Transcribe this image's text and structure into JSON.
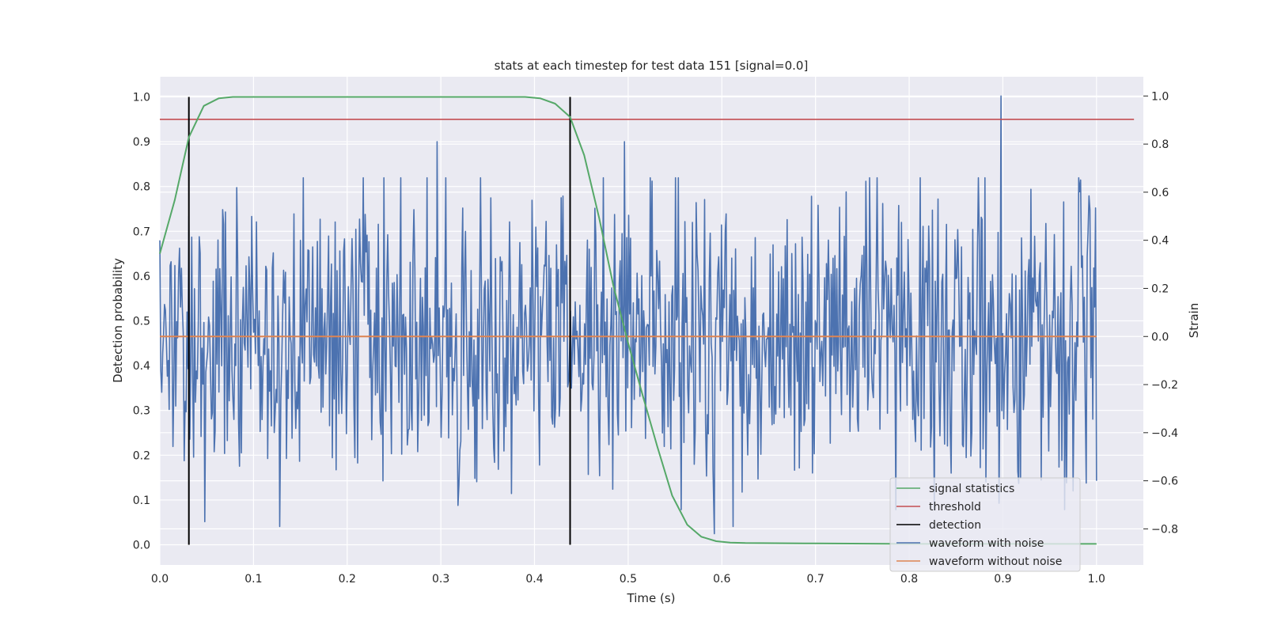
{
  "chart_data": {
    "type": "line",
    "title": "stats at each timestep for test data 151 [signal=0.0]",
    "xlabel": "Time (s)",
    "ylabel_left": "Detection probability",
    "ylabel_right": "Strain",
    "xlim": [
      0.0,
      1.05
    ],
    "ylim_left": [
      -0.045,
      1.045
    ],
    "ylim_right": [
      -0.95,
      1.08
    ],
    "x_ticks": [
      "0.0",
      "0.1",
      "0.2",
      "0.3",
      "0.4",
      "0.5",
      "0.6",
      "0.7",
      "0.8",
      "0.9",
      "1.0"
    ],
    "y_ticks_left": [
      "0.0",
      "0.1",
      "0.2",
      "0.3",
      "0.4",
      "0.5",
      "0.6",
      "0.7",
      "0.8",
      "0.9",
      "1.0"
    ],
    "y_ticks_right": [
      "−0.8",
      "−0.6",
      "−0.4",
      "−0.2",
      "0.0",
      "0.2",
      "0.4",
      "0.6",
      "0.8",
      "1.0"
    ],
    "grid": true,
    "legend_position": "bottom-right",
    "colors": {
      "background": "#eaeaf2",
      "grid": "#ffffff",
      "signal_statistics": "#55a868",
      "threshold": "#c44e52",
      "detection": "#000000",
      "waveform_with_noise": "#4c72b0",
      "waveform_without_noise": "#dd8452"
    },
    "series": [
      {
        "name": "signal statistics",
        "axis": "left",
        "x": [
          0.0,
          0.016,
          0.031,
          0.047,
          0.063,
          0.078,
          0.094,
          0.2,
          0.3,
          0.39,
          0.406,
          0.422,
          0.438,
          0.453,
          0.469,
          0.484,
          0.5,
          0.516,
          0.531,
          0.547,
          0.563,
          0.578,
          0.594,
          0.609,
          0.625,
          0.7,
          0.8,
          0.9,
          1.0
        ],
        "y": [
          0.65,
          0.77,
          0.91,
          0.98,
          0.997,
          1.0,
          1.0,
          1.0,
          1.0,
          1.0,
          0.997,
          0.985,
          0.955,
          0.87,
          0.73,
          0.58,
          0.45,
          0.33,
          0.22,
          0.11,
          0.045,
          0.018,
          0.008,
          0.005,
          0.004,
          0.003,
          0.002,
          0.002,
          0.002
        ]
      },
      {
        "name": "threshold",
        "axis": "left",
        "x": [
          0.0,
          1.04
        ],
        "y": [
          0.95,
          0.95
        ]
      },
      {
        "name": "detection",
        "axis": "left",
        "x": [
          0.031,
          0.438
        ],
        "y": [
          1.0,
          1.0
        ]
      },
      {
        "name": "waveform with noise",
        "axis": "right",
        "x": [
          0.0,
          1.0
        ],
        "y": [
          0.4,
          -0.6
        ],
        "samples": 1000,
        "std": 0.3,
        "peaks": [
          {
            "x": 0.898,
            "y": 1.0
          },
          {
            "x": 0.296,
            "y": 0.81
          },
          {
            "x": 0.496,
            "y": 0.81
          },
          {
            "x": 0.031,
            "y": 0.5
          },
          {
            "x": 0.128,
            "y": -0.79
          },
          {
            "x": 0.592,
            "y": -0.82
          },
          {
            "x": 0.612,
            "y": -0.79
          },
          {
            "x": 0.048,
            "y": -0.77
          }
        ]
      },
      {
        "name": "waveform without noise",
        "axis": "right",
        "x": [
          0.0,
          1.0
        ],
        "y": [
          0.0,
          0.0
        ]
      }
    ],
    "legend": [
      "signal statistics",
      "threshold",
      "detection",
      "waveform with noise",
      "waveform without noise"
    ]
  }
}
